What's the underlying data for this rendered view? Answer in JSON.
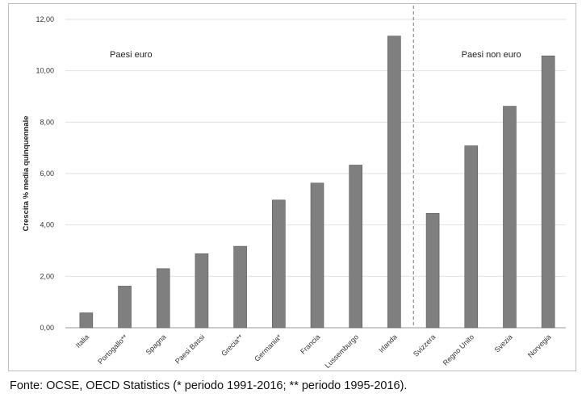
{
  "chart_data": {
    "type": "bar",
    "ylabel": "Crescita % media quinquennale",
    "ylim": [
      0,
      12
    ],
    "yticks": [
      "0,00",
      "2,00",
      "4,00",
      "6,00",
      "8,00",
      "10,00",
      "12,00"
    ],
    "grid": true,
    "categories": [
      "Italia",
      "Portogallo**",
      "Spagna",
      "Paesi Bassi",
      "Grecia**",
      "Germania*",
      "Francia",
      "Lussemburgo",
      "Irlanda",
      "Svizzera",
      "Regno Unito",
      "Svezia",
      "Norvegia"
    ],
    "values": [
      0.58,
      1.62,
      2.3,
      2.88,
      3.17,
      4.97,
      5.63,
      6.33,
      11.35,
      4.45,
      7.08,
      8.62,
      10.58
    ],
    "groups": [
      {
        "label": "Paesi euro",
        "count": 9
      },
      {
        "label": "Paesi non euro",
        "count": 4
      }
    ],
    "bar_color": "#7f7f7f"
  },
  "source": "Fonte: OCSE, OECD Statistics (* periodo 1991-2016; ** periodo 1995-2016)."
}
